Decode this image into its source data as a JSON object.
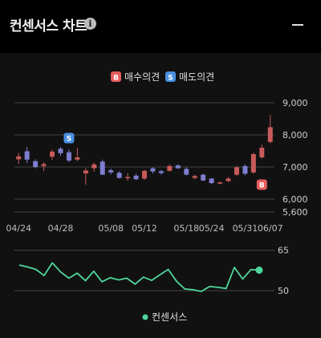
{
  "header": {
    "title": "컨센서스 차트",
    "info_icon": "info-icon",
    "collapse_icon": "minus-icon"
  },
  "legend_top": [
    {
      "badge": "B",
      "label": "매수의견",
      "color": "#e45c5c"
    },
    {
      "badge": "S",
      "label": "매도의견",
      "color": "#4a90e2"
    }
  ],
  "legend_bottom": {
    "label": "컨센서스",
    "color": "#4fd69c"
  },
  "colors": {
    "up": "#c85a5a",
    "down": "#7d7ecf",
    "line": "#4fd69c"
  },
  "chart_data": [
    {
      "type": "candlestick",
      "title": "",
      "ylim": [
        5500,
        9200
      ],
      "yticks": [
        "9,000",
        "8,000",
        "7,000",
        "6,000",
        "5,600"
      ],
      "ytick_values": [
        9000,
        8000,
        7000,
        6000,
        5600
      ],
      "xticks": [
        "04/24",
        "04/28",
        "05/08",
        "05/12",
        "05/18",
        "05/24",
        "05/31",
        "06/07"
      ],
      "candles": [
        {
          "o": 7240,
          "c": 7330,
          "h": 7440,
          "l": 7100
        },
        {
          "o": 7490,
          "c": 7230,
          "h": 7620,
          "l": 7120
        },
        {
          "o": 7180,
          "c": 7000,
          "h": 7240,
          "l": 6960
        },
        {
          "o": 7030,
          "c": 7090,
          "h": 7150,
          "l": 6880
        },
        {
          "o": 7320,
          "c": 7480,
          "h": 7540,
          "l": 7220
        },
        {
          "o": 7570,
          "c": 7430,
          "h": 7620,
          "l": 7350
        },
        {
          "o": 7460,
          "c": 7200,
          "h": 7550,
          "l": 7150
        },
        {
          "o": 7230,
          "c": 7300,
          "h": 7600,
          "l": 7180
        },
        {
          "o": 6800,
          "c": 6890,
          "h": 6960,
          "l": 6450
        },
        {
          "o": 6960,
          "c": 7080,
          "h": 7130,
          "l": 6850
        },
        {
          "o": 7170,
          "c": 6760,
          "h": 7230,
          "l": 6750
        },
        {
          "o": 6900,
          "c": 6830,
          "h": 6950,
          "l": 6770
        },
        {
          "o": 6820,
          "c": 6660,
          "h": 6870,
          "l": 6640
        },
        {
          "o": 6650,
          "c": 6690,
          "h": 6810,
          "l": 6580
        },
        {
          "o": 6730,
          "c": 6620,
          "h": 6790,
          "l": 6590
        },
        {
          "o": 6640,
          "c": 6880,
          "h": 6910,
          "l": 6600
        },
        {
          "o": 6960,
          "c": 6860,
          "h": 6990,
          "l": 6800
        },
        {
          "o": 6870,
          "c": 6810,
          "h": 6910,
          "l": 6760
        },
        {
          "o": 6880,
          "c": 7030,
          "h": 7080,
          "l": 6860
        },
        {
          "o": 7050,
          "c": 6960,
          "h": 7090,
          "l": 6940
        },
        {
          "o": 6940,
          "c": 6760,
          "h": 6990,
          "l": 6740
        },
        {
          "o": 6660,
          "c": 6720,
          "h": 6760,
          "l": 6620
        },
        {
          "o": 6760,
          "c": 6580,
          "h": 6790,
          "l": 6560
        },
        {
          "o": 6640,
          "c": 6500,
          "h": 6660,
          "l": 6470
        },
        {
          "o": 6480,
          "c": 6520,
          "h": 6550,
          "l": 6470
        },
        {
          "o": 6560,
          "c": 6640,
          "h": 6690,
          "l": 6530
        },
        {
          "o": 6760,
          "c": 6990,
          "h": 7020,
          "l": 6720
        },
        {
          "o": 7030,
          "c": 6790,
          "h": 7080,
          "l": 6740
        },
        {
          "o": 6830,
          "c": 7400,
          "h": 7450,
          "l": 6790
        },
        {
          "o": 7300,
          "c": 7600,
          "h": 7700,
          "l": 7260
        },
        {
          "o": 7780,
          "c": 8240,
          "h": 8620,
          "l": 7740
        }
      ],
      "signals": [
        {
          "type": "S",
          "index": 6,
          "price": 7900
        },
        {
          "type": "B",
          "index": 29,
          "price": 6450
        }
      ]
    },
    {
      "type": "line",
      "title": "",
      "ylim": [
        47,
        67
      ],
      "yticks": [
        "65",
        "50"
      ],
      "ytick_values": [
        65,
        50
      ],
      "series": [
        {
          "name": "컨센서스",
          "values": [
            59.5,
            58.8,
            57.9,
            55.6,
            60.3,
            56.9,
            54.6,
            56.5,
            53.7,
            57.2,
            53.3,
            54.8,
            54.0,
            54.6,
            52.4,
            55.0,
            53.8,
            55.9,
            57.9,
            53.5,
            50.6,
            50.3,
            49.7,
            51.5,
            51.2,
            50.8,
            58.6,
            54.3,
            57.8,
            57.6
          ]
        }
      ]
    }
  ]
}
